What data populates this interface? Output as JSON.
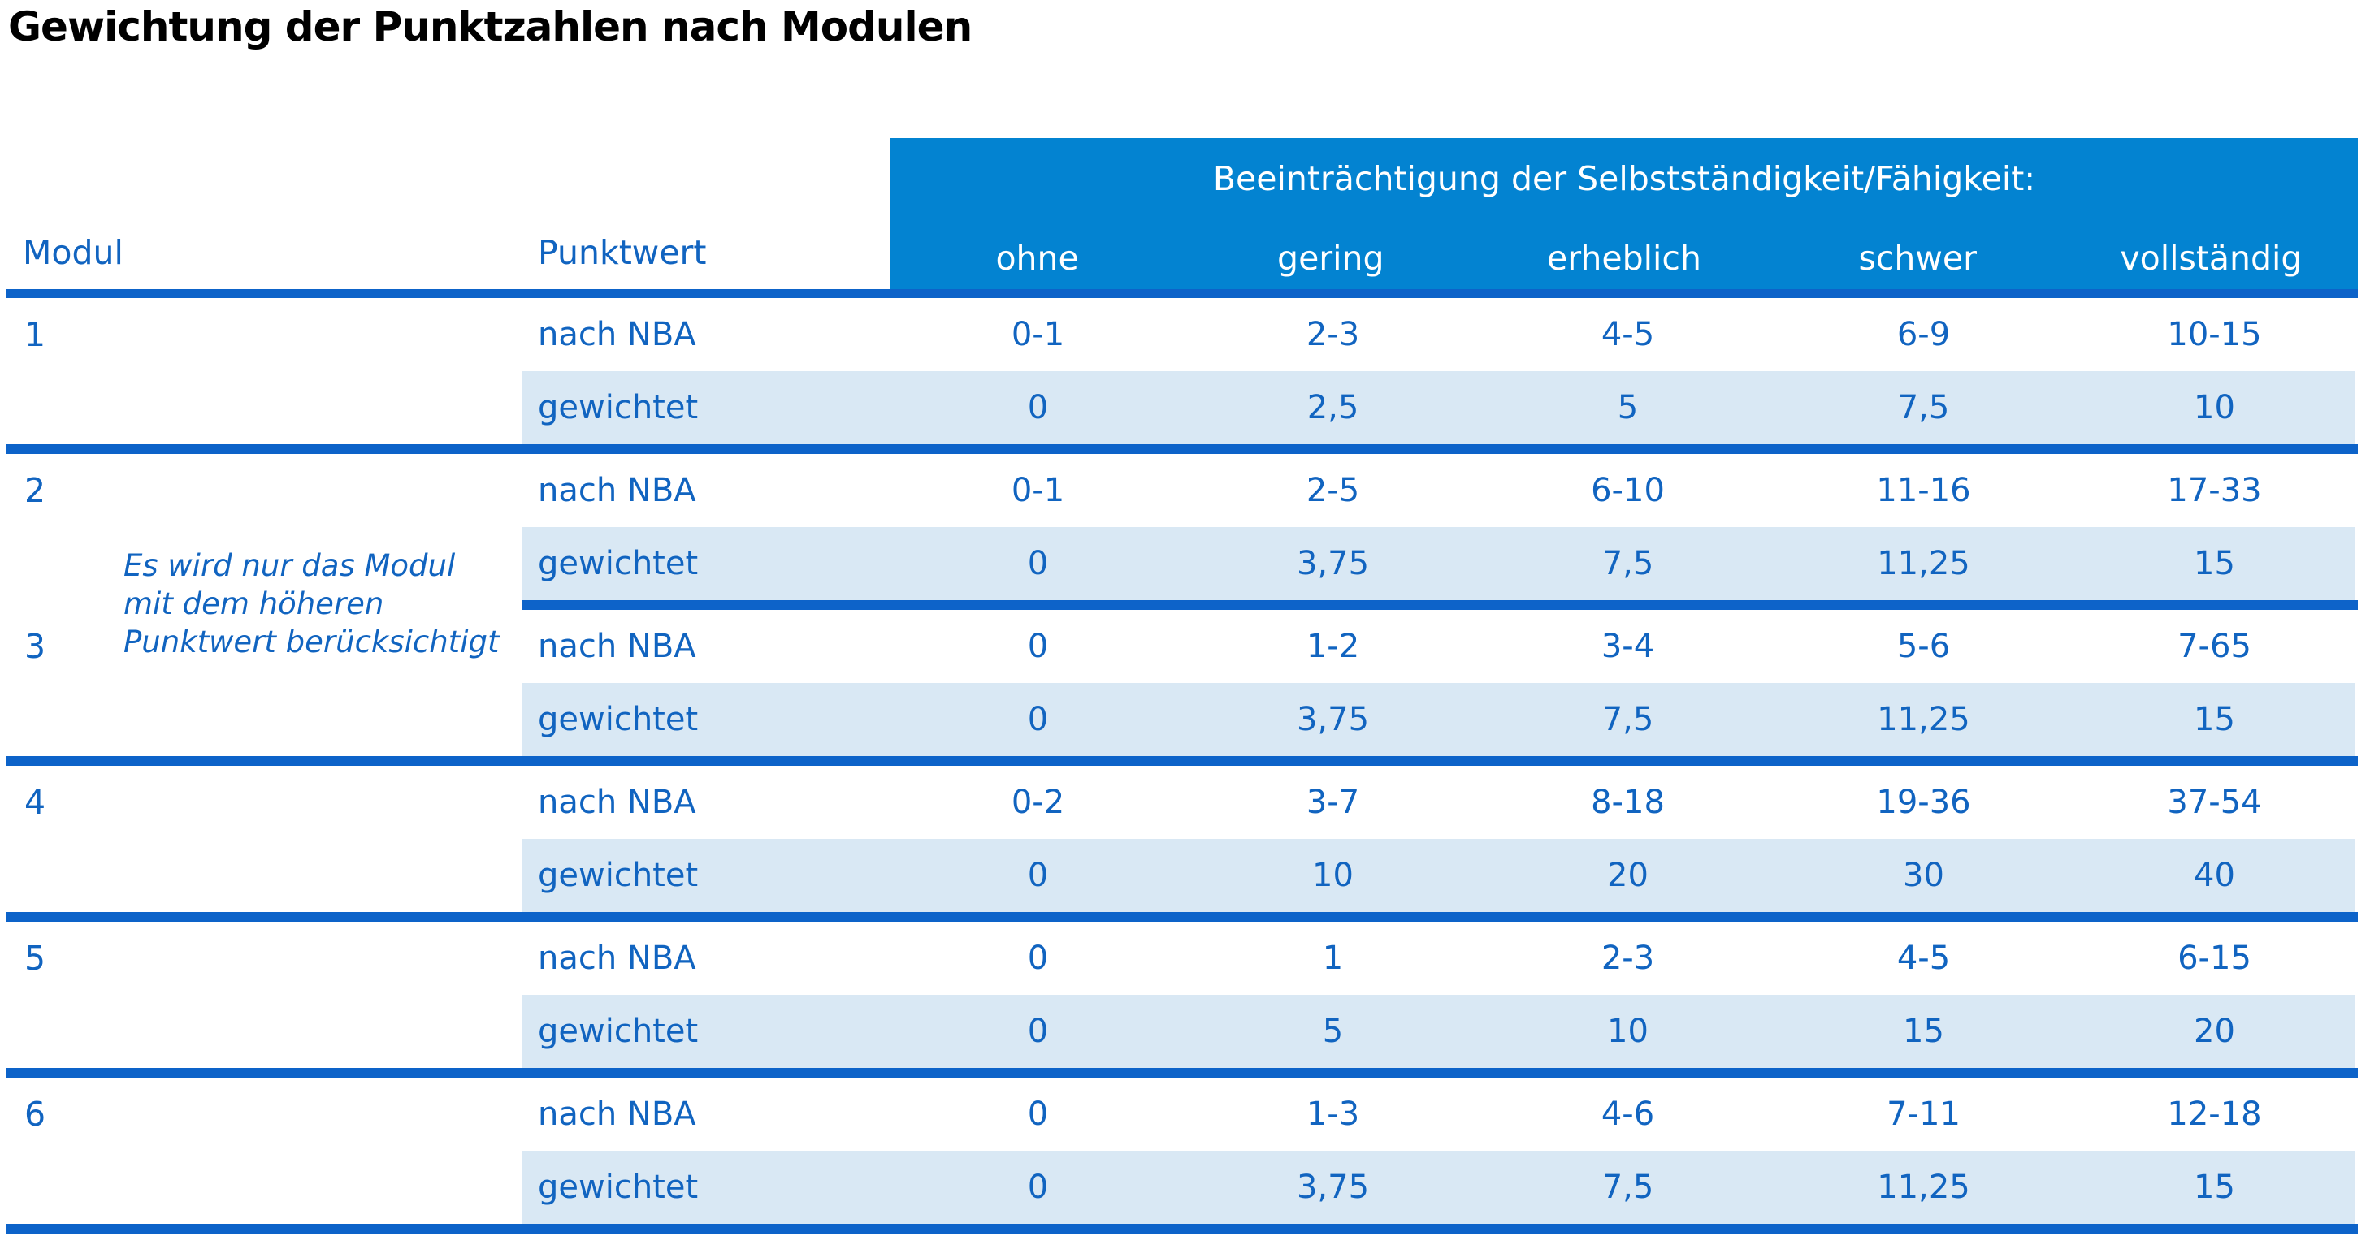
{
  "title": "Gewichtung der Punktzahlen nach Modulen",
  "table": {
    "col_headers": {
      "modul": "Modul",
      "punktwert": "Punktwert"
    },
    "impairment_header": "Beeinträchtigung der Selbstständigkeit/Fähigkeit:",
    "levels": [
      "ohne",
      "gering",
      "erheblich",
      "schwer",
      "vollständig"
    ],
    "row_labels": {
      "nba": "nach NBA",
      "weighted": "gewichtet"
    },
    "note": {
      "lines": [
        "Es wird nur das Modul",
        "mit dem höheren",
        "Punktwert berücksichtigt"
      ]
    },
    "modules": [
      {
        "id": "1",
        "nba": [
          "0-1",
          "2-3",
          "4-5",
          "6-9",
          "10-15"
        ],
        "weighted": [
          "0",
          "2,5",
          "5",
          "7,5",
          "10"
        ]
      },
      {
        "id": "2",
        "nba": [
          "0-1",
          "2-5",
          "6-10",
          "11-16",
          "17-33"
        ],
        "weighted": [
          "0",
          "3,75",
          "7,5",
          "11,25",
          "15"
        ]
      },
      {
        "id": "3",
        "nba": [
          "0",
          "1-2",
          "3-4",
          "5-6",
          "7-65"
        ],
        "weighted": [
          "0",
          "3,75",
          "7,5",
          "11,25",
          "15"
        ]
      },
      {
        "id": "4",
        "nba": [
          "0-2",
          "3-7",
          "8-18",
          "19-36",
          "37-54"
        ],
        "weighted": [
          "0",
          "10",
          "20",
          "30",
          "40"
        ]
      },
      {
        "id": "5",
        "nba": [
          "0",
          "1",
          "2-3",
          "4-5",
          "6-15"
        ],
        "weighted": [
          "0",
          "5",
          "10",
          "15",
          "20"
        ]
      },
      {
        "id": "6",
        "nba": [
          "0",
          "1-3",
          "4-6",
          "7-11",
          "12-18"
        ],
        "weighted": [
          "0",
          "3,75",
          "7,5",
          "11,25",
          "15"
        ]
      }
    ]
  },
  "colors": {
    "header_bg": "#0383d1",
    "line": "#0d63c9",
    "text_blue": "#1164c0",
    "row_alt_bg": "#d9e8f4",
    "header_text": "#ffffff",
    "title_text": "#000000",
    "page_bg": "#ffffff"
  }
}
